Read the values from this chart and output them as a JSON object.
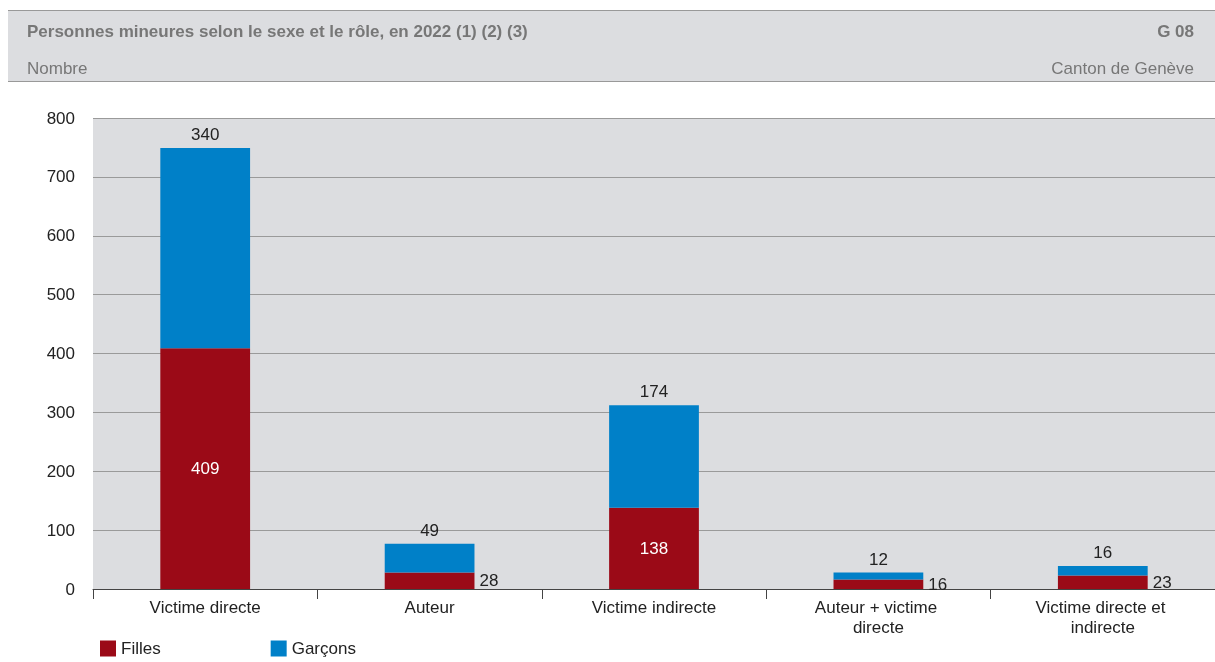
{
  "chart_data": {
    "type": "bar",
    "title": "Personnes mineures selon le sexe et le rôle, en 2022 (1) (2) (3)",
    "subtitle": "Nombre",
    "annotations": [
      "G 08",
      "Canton de Genève"
    ],
    "categories": [
      "Victime directe",
      "Auteur",
      "Victime indirecte",
      "Auteur + victime directe",
      "Victime directe et indirecte"
    ],
    "stacked": true,
    "series": [
      {
        "name": "Filles",
        "color": "#9b0a17",
        "values": [
          409,
          28,
          138,
          16,
          23
        ]
      },
      {
        "name": "Garçons",
        "color": "#0080c8",
        "values": [
          340,
          49,
          174,
          12,
          16
        ]
      }
    ],
    "ylim": [
      0,
      800
    ],
    "yticks": [
      0,
      100,
      200,
      300,
      400,
      500,
      600,
      700,
      800
    ],
    "grid": "y",
    "legend": "bottom left",
    "data_labels": true
  }
}
